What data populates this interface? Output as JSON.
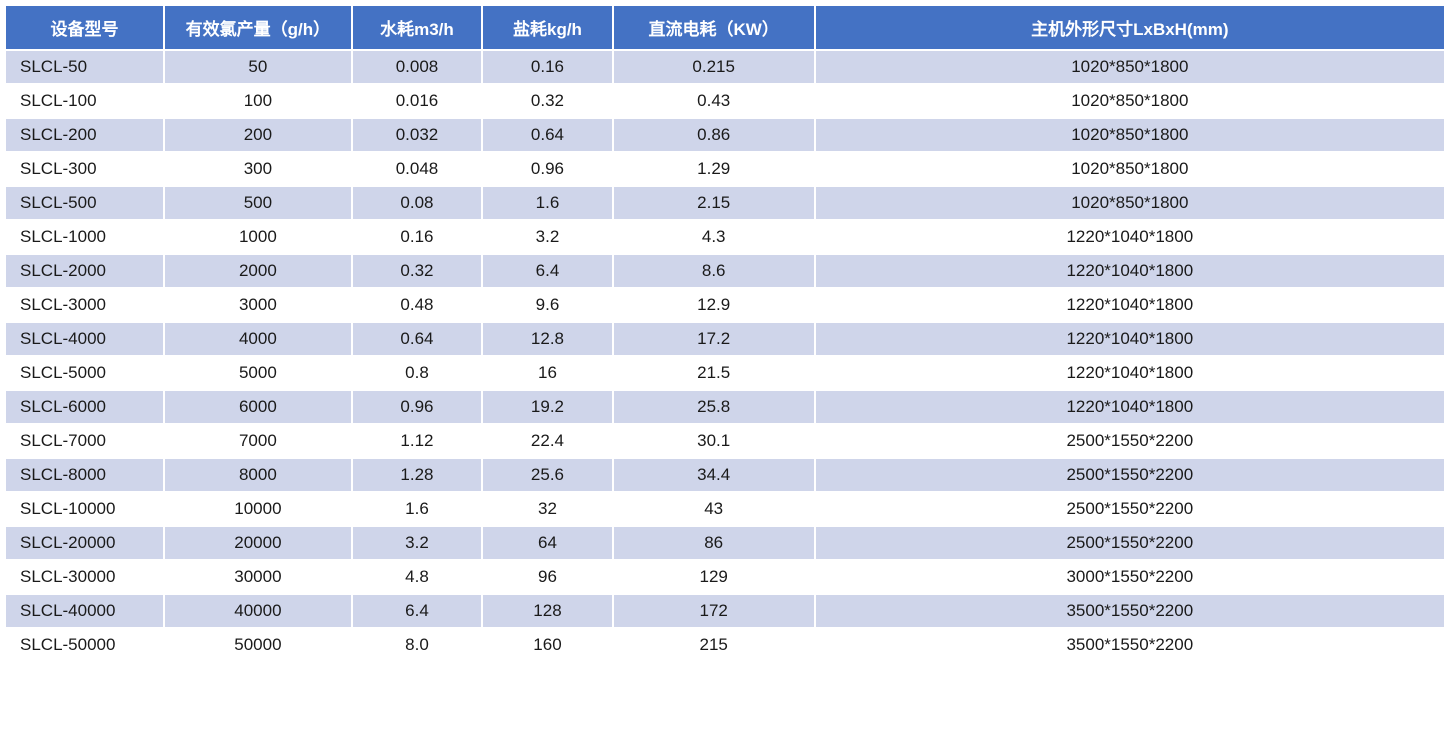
{
  "table": {
    "type": "table",
    "header_bg": "#4472c4",
    "header_fg": "#ffffff",
    "row_even_bg": "#ffffff",
    "row_odd_bg": "#cfd5ea",
    "text_color": "#1a1a1a",
    "header_fontsize": 17,
    "cell_fontsize": 17,
    "col_widths_pct": [
      11,
      13,
      9,
      9,
      14,
      44
    ],
    "columns": [
      "设备型号",
      "有效氯产量（g/h）",
      "水耗m3/h",
      "盐耗kg/h",
      "直流电耗（KW）",
      "主机外形尺寸LxBxH(mm)"
    ],
    "rows": [
      [
        "SLCL-50",
        "50",
        "0.008",
        "0.16",
        "0.215",
        "1020*850*1800"
      ],
      [
        "SLCL-100",
        "100",
        "0.016",
        "0.32",
        "0.43",
        "1020*850*1800"
      ],
      [
        "SLCL-200",
        "200",
        "0.032",
        "0.64",
        "0.86",
        "1020*850*1800"
      ],
      [
        "SLCL-300",
        "300",
        "0.048",
        "0.96",
        "1.29",
        "1020*850*1800"
      ],
      [
        "SLCL-500",
        "500",
        "0.08",
        "1.6",
        "2.15",
        "1020*850*1800"
      ],
      [
        "SLCL-1000",
        "1000",
        "0.16",
        "3.2",
        "4.3",
        "1220*1040*1800"
      ],
      [
        "SLCL-2000",
        "2000",
        "0.32",
        "6.4",
        "8.6",
        "1220*1040*1800"
      ],
      [
        "SLCL-3000",
        "3000",
        "0.48",
        "9.6",
        "12.9",
        "1220*1040*1800"
      ],
      [
        "SLCL-4000",
        "4000",
        "0.64",
        "12.8",
        "17.2",
        "1220*1040*1800"
      ],
      [
        "SLCL-5000",
        "5000",
        "0.8",
        "16",
        "21.5",
        "1220*1040*1800"
      ],
      [
        "SLCL-6000",
        "6000",
        "0.96",
        "19.2",
        "25.8",
        "1220*1040*1800"
      ],
      [
        "SLCL-7000",
        "7000",
        "1.12",
        "22.4",
        "30.1",
        "2500*1550*2200"
      ],
      [
        "SLCL-8000",
        "8000",
        "1.28",
        "25.6",
        "34.4",
        "2500*1550*2200"
      ],
      [
        "SLCL-10000",
        "10000",
        "1.6",
        "32",
        "43",
        "2500*1550*2200"
      ],
      [
        "SLCL-20000",
        "20000",
        "3.2",
        "64",
        "86",
        "2500*1550*2200"
      ],
      [
        "SLCL-30000",
        "30000",
        "4.8",
        "96",
        "129",
        "3000*1550*2200"
      ],
      [
        "SLCL-40000",
        "40000",
        "6.4",
        "128",
        "172",
        "3500*1550*2200"
      ],
      [
        "SLCL-50000",
        "50000",
        "8.0",
        "160",
        "215",
        "3500*1550*2200"
      ]
    ]
  }
}
